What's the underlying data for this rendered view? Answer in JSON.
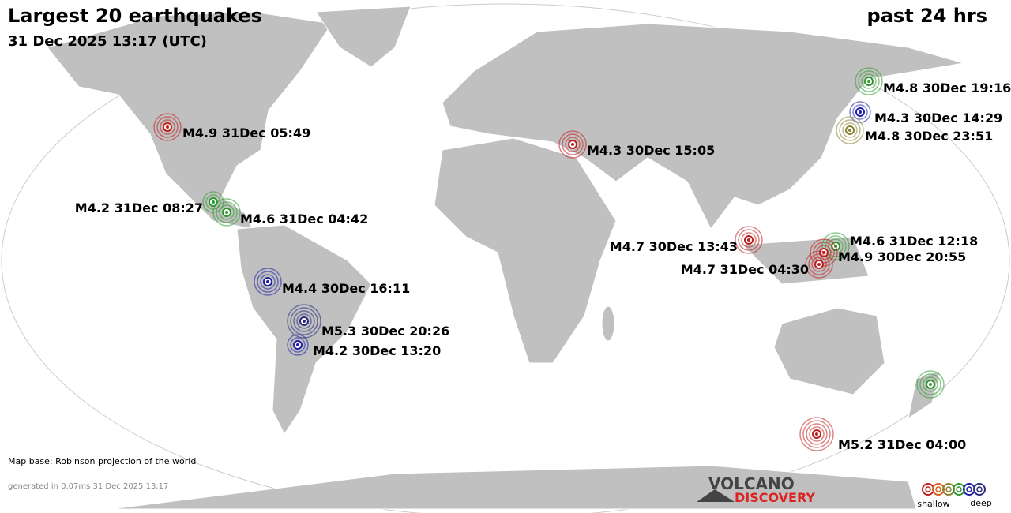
{
  "header": {
    "title": "Largest 20 earthquakes",
    "subtitle": "31 Dec 2025 13:17 (UTC)",
    "period": "past 24 hrs"
  },
  "quakes": [
    {
      "label": "M4.8 30Dec 19:16",
      "color": "#2e9a2e"
    },
    {
      "label": "M4.3 30Dec 14:29",
      "color": "#1f1fa8"
    },
    {
      "label": "M4.8 30Dec 23:51",
      "color": "#8a8430"
    },
    {
      "label": "M4.9 31Dec 05:49",
      "color": "#c21f1f"
    },
    {
      "label": "M4.3 30Dec 15:05",
      "color": "#c21f1f"
    },
    {
      "label": "M4.2 31Dec 08:27",
      "color": "#2e9a2e"
    },
    {
      "label": "M4.6 31Dec 04:42",
      "color": "#2e9a2e"
    },
    {
      "label": "M4.7 30Dec 13:43",
      "color": "#c21f1f"
    },
    {
      "label": "M4.6 31Dec 12:18",
      "color": "#2e9a2e"
    },
    {
      "label": "M4.9 30Dec 20:55",
      "color": "#c21f1f"
    },
    {
      "label": "M4.7 31Dec 04:30",
      "color": "#c21f1f"
    },
    {
      "label": "M4.4 30Dec 16:11",
      "color": "#1f1fa8"
    },
    {
      "label": "M5.3 30Dec 20:26",
      "color": "#2a2a80"
    },
    {
      "label": "M4.2 30Dec 13:20",
      "color": "#1f1fa8"
    },
    {
      "color": "#2e9a2e"
    },
    {
      "label": "M5.2 31Dec 04:00",
      "color": "#c21f1f"
    }
  ],
  "footer": {
    "map_base": "Map base: Robinson projection of the world",
    "generated": "generated in 0.07ms 31 Dec 2025 13:17"
  },
  "logo": {
    "line1": "VOLCANO",
    "line2": "DISCOVERY"
  },
  "legend": {
    "colors": [
      "#c21f1f",
      "#d8621a",
      "#8a8430",
      "#2e9a2e",
      "#1f1fa8",
      "#2a2a80"
    ],
    "shallow": "shallow",
    "deep": "deep"
  }
}
